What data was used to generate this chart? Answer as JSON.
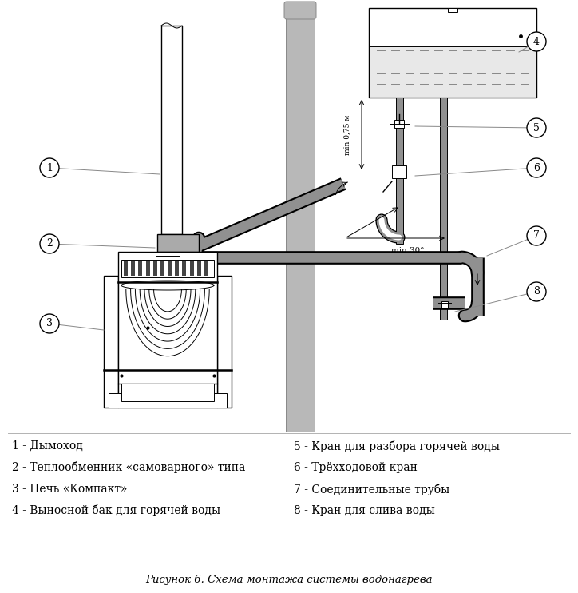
{
  "caption": "Рисунок 6. Схема монтажа системы водонагрева",
  "bg_color": "#ffffff",
  "line_color": "#000000",
  "gray_color": "#888888",
  "pipe_gray": "#909090",
  "wall_gray": "#b8b8b8",
  "legend_left": [
    "1 - Дымоход",
    "2 - Теплообменник «самоварного» типа",
    "3 - Печь «Компакт»",
    "4 - Выносной бак для горячей воды"
  ],
  "legend_right": [
    "5 - Кран для разбора горячей воды",
    "6 - Трёхходовой кран",
    "7 - Соединительные трубы",
    "8 - Кран для слива воды"
  ]
}
